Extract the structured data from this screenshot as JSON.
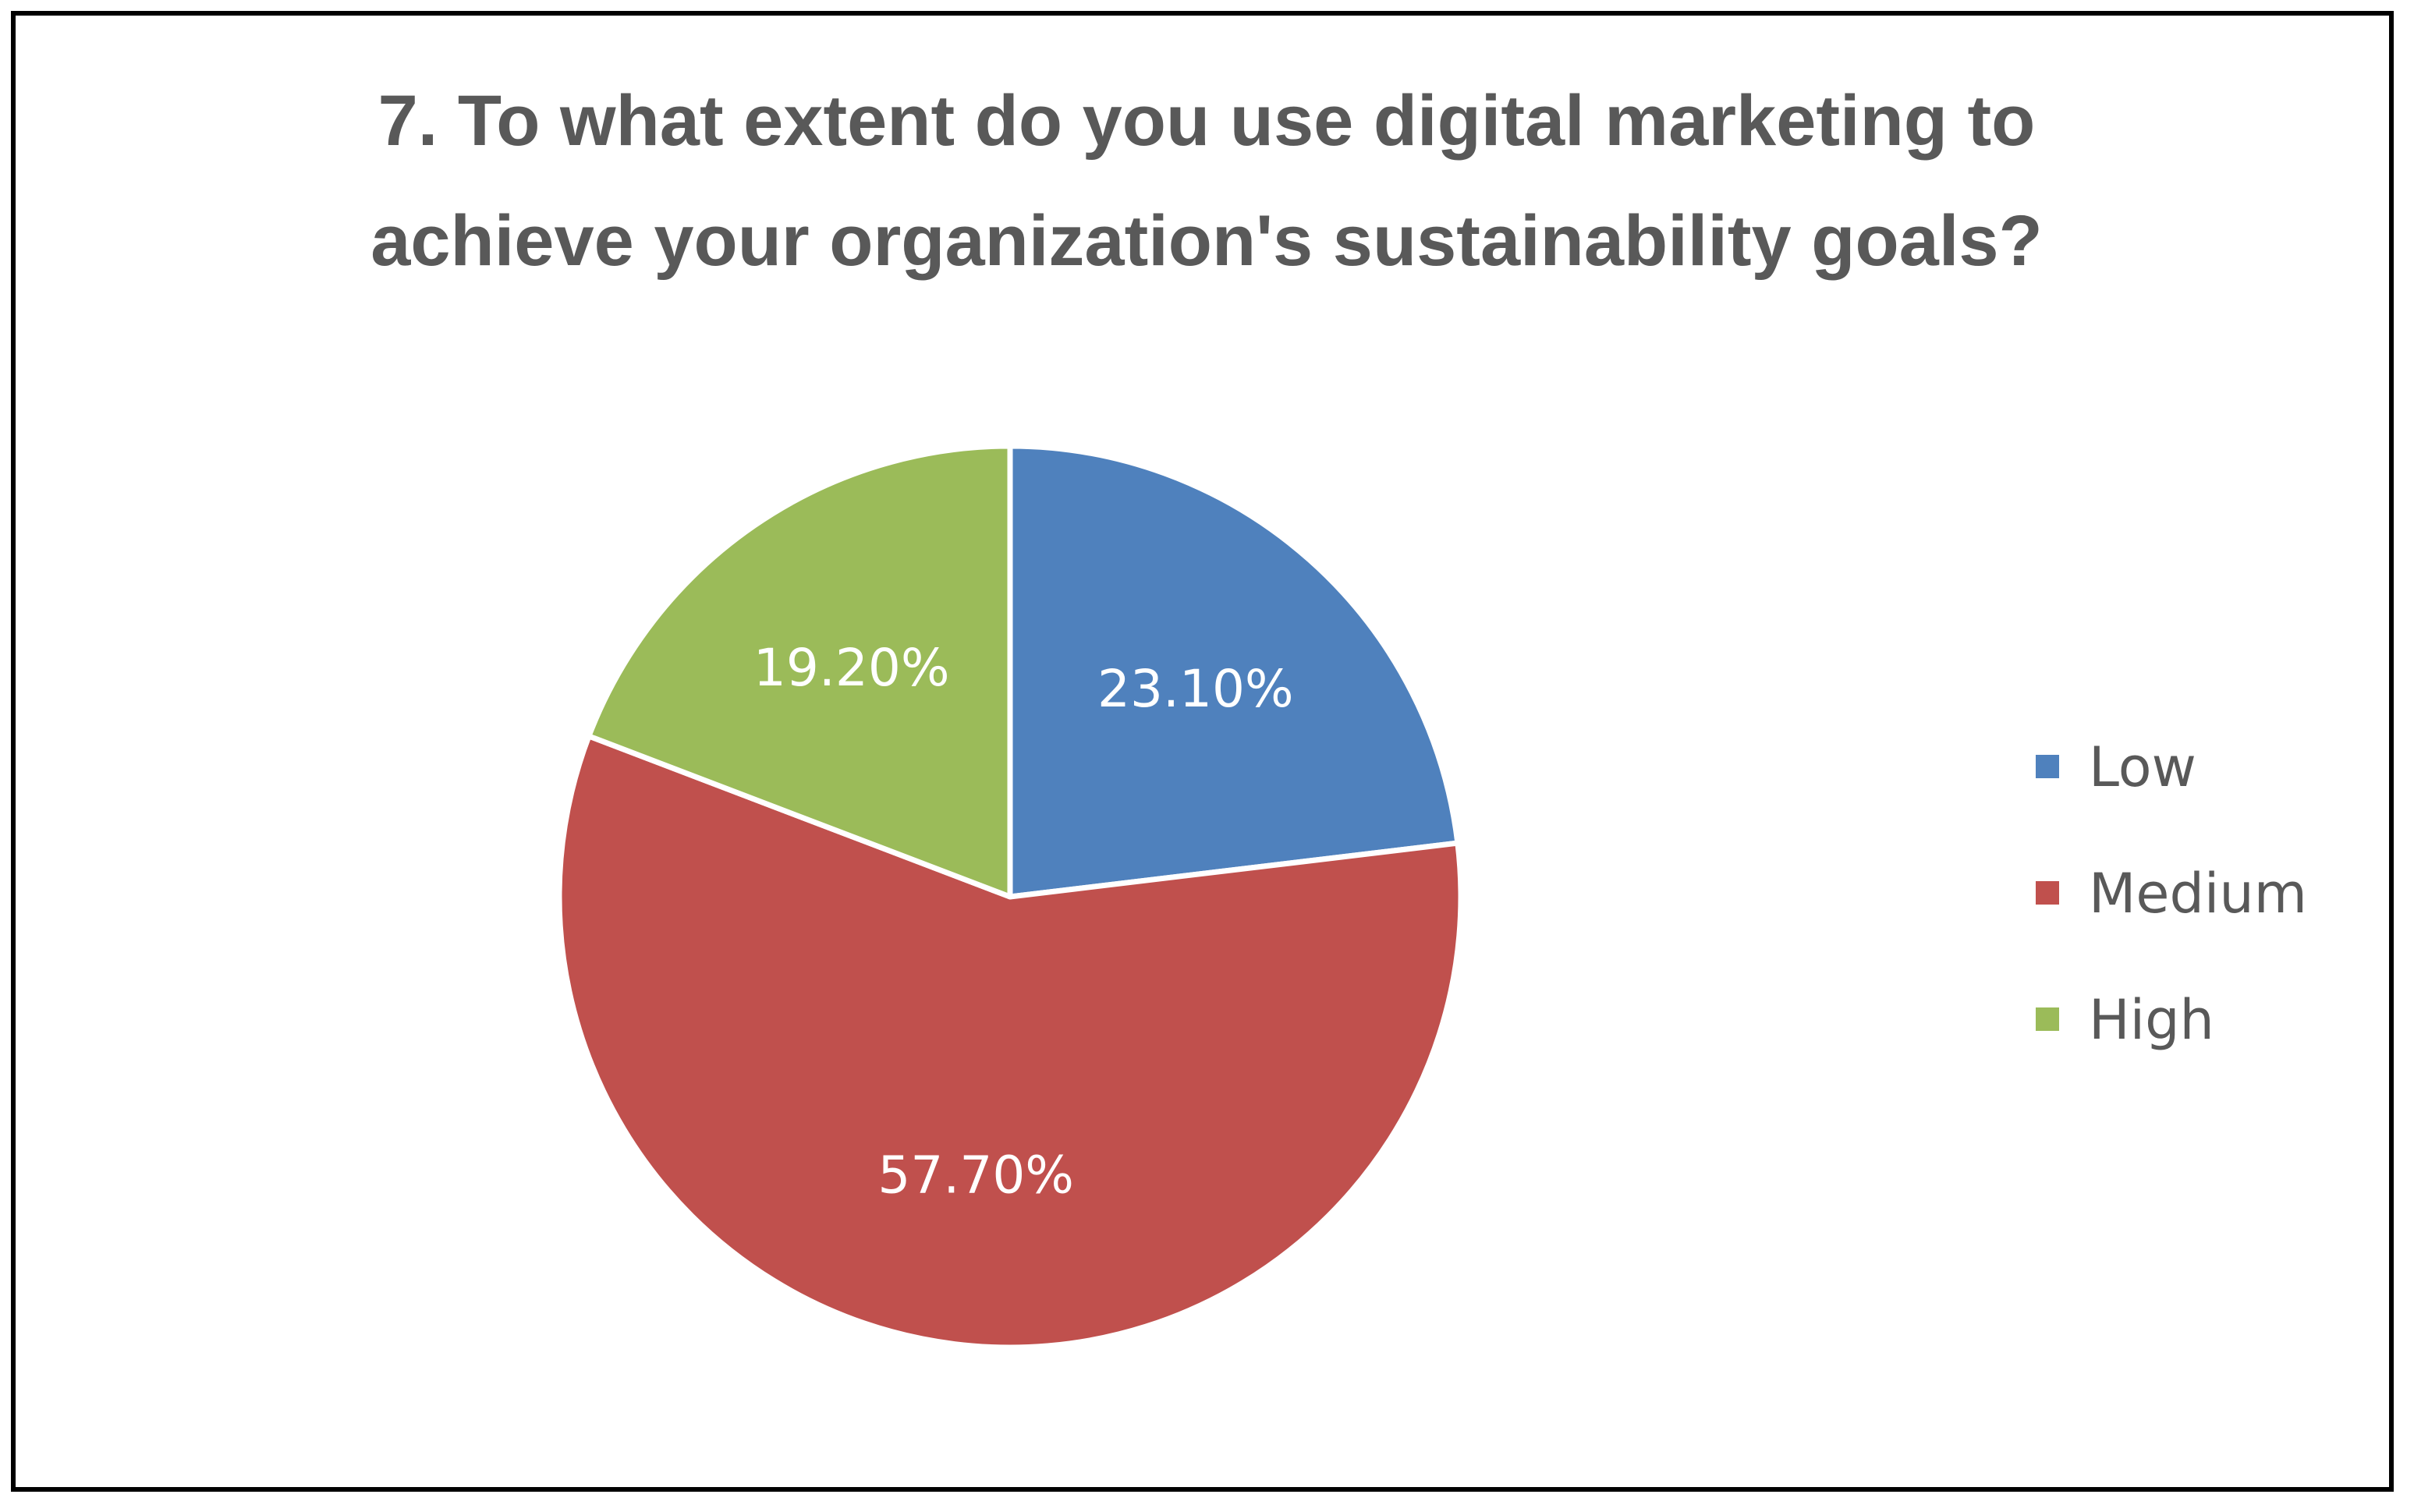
{
  "chart_data": {
    "type": "pie",
    "title_lines": [
      "7. To what extent do you use digital marketing to",
      "achieve your organization's sustainability goals?"
    ],
    "categories": [
      "Low",
      "Medium",
      "High"
    ],
    "values": [
      23.1,
      57.7,
      19.2
    ],
    "data_labels": [
      "23.10%",
      "57.70%",
      "19.20%"
    ],
    "colors": [
      "#4F81BD",
      "#C0504D",
      "#9BBB59"
    ],
    "start_angle_deg": 0,
    "direction": "clockwise",
    "legend_position": "right"
  }
}
